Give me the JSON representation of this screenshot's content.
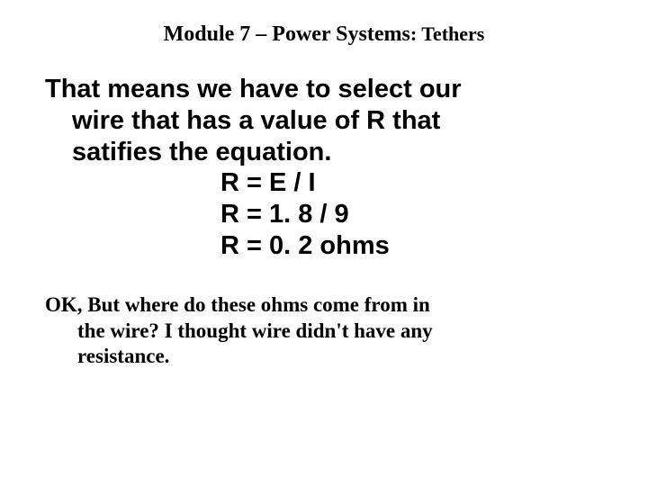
{
  "title": {
    "main": "Module 7 – Power Systems",
    "sub": ": Tethers"
  },
  "body": {
    "line1": "That means we have to select our",
    "line2": "wire that has a value of R that",
    "line3": "satifies the equation.",
    "eq1": "R = E / I",
    "eq2": "R = 1. 8 / 9",
    "eq3": "R = 0. 2 ohms"
  },
  "footer": {
    "line1": "OK, But where do these ohms come from in",
    "line2": "the wire?  I thought wire didn't have any",
    "line3": "resistance."
  },
  "styles": {
    "title_font": "Times New Roman",
    "title_size_pt": 24,
    "title_sub_size_pt": 22,
    "body_font": "Arial",
    "body_size_pt": 29,
    "footer_font": "Comic Sans MS",
    "footer_size_pt": 23,
    "text_color": "#000000",
    "background_color": "#ffffff"
  }
}
